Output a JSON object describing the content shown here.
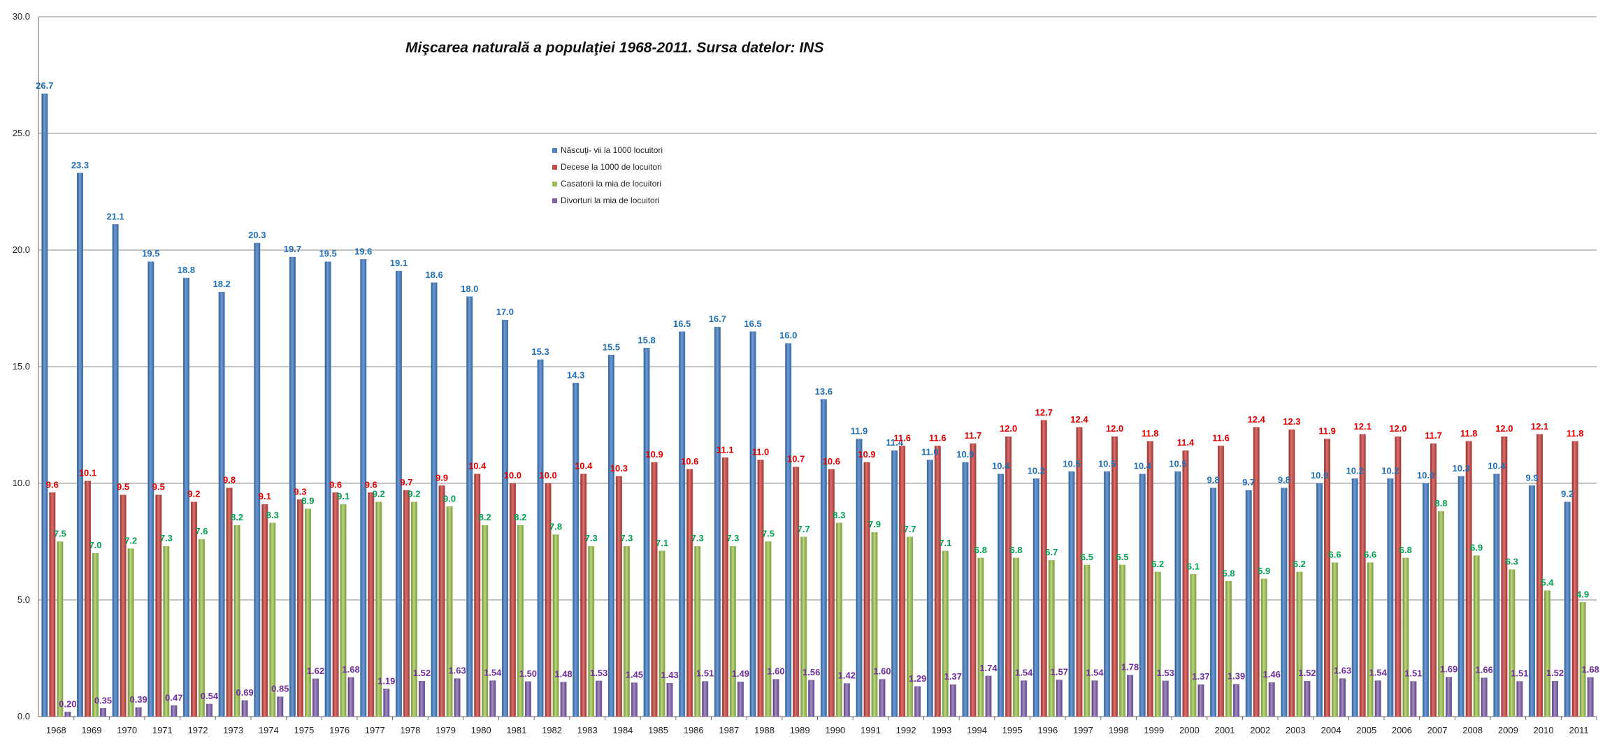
{
  "chart_data": {
    "type": "bar",
    "title": "Mişcarea naturală a populaţiei 1968-2011. Sursa datelor: INS",
    "xlabel": "",
    "ylabel": "",
    "ylim": [
      0,
      30
    ],
    "yticks": [
      "0.0",
      "5.0",
      "10.0",
      "15.0",
      "20.0",
      "25.0",
      "30.0"
    ],
    "grid": true,
    "legend_position": "top-center",
    "categories": [
      "1968",
      "1969",
      "1970",
      "1971",
      "1972",
      "1973",
      "1974",
      "1975",
      "1976",
      "1977",
      "1978",
      "1979",
      "1980",
      "1981",
      "1982",
      "1983",
      "1984",
      "1985",
      "1986",
      "1987",
      "1988",
      "1989",
      "1990",
      "1991",
      "1992",
      "1993",
      "1994",
      "1995",
      "1996",
      "1997",
      "1998",
      "1999",
      "2000",
      "2001",
      "2002",
      "2003",
      "2004",
      "2005",
      "2006",
      "2007",
      "2008",
      "2009",
      "2010",
      "2011"
    ],
    "series": [
      {
        "name": "Născuţi- vii la 1000 locuitori",
        "color": "#4f81bd",
        "label_color": "#1f6fb5",
        "values": [
          26.7,
          23.3,
          21.1,
          19.5,
          18.8,
          18.2,
          20.3,
          19.7,
          19.5,
          19.6,
          19.1,
          18.6,
          18.0,
          17.0,
          15.3,
          14.3,
          15.5,
          15.8,
          16.5,
          16.7,
          16.5,
          16.0,
          13.6,
          11.9,
          11.4,
          11.0,
          10.9,
          10.4,
          10.2,
          10.5,
          10.5,
          10.4,
          10.5,
          9.8,
          9.7,
          9.8,
          10.0,
          10.2,
          10.2,
          10.0,
          10.3,
          10.4,
          9.9,
          9.2
        ],
        "labels": [
          "26.7",
          "23.3",
          "21.1",
          "19.5",
          "18.8",
          "18.2",
          "20.3",
          "19.7",
          "19.5",
          "19.6",
          "19.1",
          "18.6",
          "18.0",
          "17.0",
          "15.3",
          "14.3",
          "15.5",
          "15.8",
          "16.5",
          "16.7",
          "16.5",
          "16.0",
          "13.6",
          "11.9",
          "11.4",
          "11.0",
          "10.9",
          "10.4",
          "10.2",
          "10.5",
          "10.5",
          "10.4",
          "10.5",
          "9.8",
          "9.7",
          "9.8",
          "10.0",
          "10.2",
          "10.2",
          "10.0",
          "10.3",
          "10.4",
          "9.9",
          "9.2"
        ]
      },
      {
        "name": "Decese la 1000 de locuitori",
        "color": "#c0504d",
        "label_color": "#e00000",
        "values": [
          9.6,
          10.1,
          9.5,
          9.5,
          9.2,
          9.8,
          9.1,
          9.3,
          9.6,
          9.6,
          9.7,
          9.9,
          10.4,
          10.0,
          10.0,
          10.4,
          10.3,
          10.9,
          10.6,
          11.1,
          11.0,
          10.7,
          10.6,
          10.9,
          11.6,
          11.6,
          11.7,
          12.0,
          12.7,
          12.4,
          12.0,
          11.8,
          11.4,
          11.6,
          12.4,
          12.3,
          11.9,
          12.1,
          12.0,
          11.7,
          11.8,
          12.0,
          12.1,
          11.8
        ],
        "labels": [
          "9.6",
          "10.1",
          "9.5",
          "9.5",
          "9.2",
          "9.8",
          "9.1",
          "9.3",
          "9.6",
          "9.6",
          "9.7",
          "9.9",
          "10.4",
          "10.0",
          "10.0",
          "10.4",
          "10.3",
          "10.9",
          "10.6",
          "11.1",
          "11.0",
          "10.7",
          "10.6",
          "10.9",
          "11.6",
          "11.6",
          "11.7",
          "12.0",
          "12.7",
          "12.4",
          "12.0",
          "11.8",
          "11.4",
          "11.6",
          "12.4",
          "12.3",
          "11.9",
          "12.1",
          "12.0",
          "11.7",
          "11.8",
          "12.0",
          "12.1",
          "11.8"
        ]
      },
      {
        "name": "Casatorii la mia de locuitori",
        "color": "#9bbb59",
        "label_color": "#00a050",
        "values": [
          7.5,
          7.0,
          7.2,
          7.3,
          7.6,
          8.2,
          8.3,
          8.9,
          9.1,
          9.2,
          9.2,
          9.0,
          8.2,
          8.2,
          7.8,
          7.3,
          7.3,
          7.1,
          7.3,
          7.3,
          7.5,
          7.7,
          8.3,
          7.9,
          7.7,
          7.1,
          6.8,
          6.8,
          6.7,
          6.5,
          6.5,
          6.2,
          6.1,
          5.8,
          5.9,
          6.2,
          6.6,
          6.6,
          6.8,
          8.8,
          6.9,
          6.3,
          5.4,
          4.9
        ],
        "labels": [
          "7.5",
          "7.0",
          "7.2",
          "7.3",
          "7.6",
          "8.2",
          "8.3",
          "8.9",
          "9.1",
          "9.2",
          "9.2",
          "9.0",
          "8.2",
          "8.2",
          "7.8",
          "7.3",
          "7.3",
          "7.1",
          "7.3",
          "7.3",
          "7.5",
          "7.7",
          "8.3",
          "7.9",
          "7.7",
          "7.1",
          "6.8",
          "6.8",
          "6.7",
          "6.5",
          "6.5",
          "6.2",
          "6.1",
          "5.8",
          "5.9",
          "6.2",
          "6.6",
          "6.6",
          "6.8",
          "8.8",
          "6.9",
          "6.3",
          "5.4",
          "4.9"
        ]
      },
      {
        "name": "Divorturi la mia de locuitori",
        "color": "#8064a2",
        "label_color": "#7030a0",
        "values": [
          0.2,
          0.35,
          0.39,
          0.47,
          0.54,
          0.69,
          0.85,
          1.62,
          1.68,
          1.19,
          1.52,
          1.63,
          1.54,
          1.5,
          1.48,
          1.53,
          1.45,
          1.43,
          1.51,
          1.49,
          1.6,
          1.56,
          1.42,
          1.6,
          1.29,
          1.37,
          1.74,
          1.54,
          1.57,
          1.54,
          1.78,
          1.53,
          1.37,
          1.39,
          1.46,
          1.52,
          1.63,
          1.54,
          1.51,
          1.69,
          1.66,
          1.51,
          1.52,
          1.68
        ],
        "labels": [
          "0.20",
          "0.35",
          "0.39",
          "0.47",
          "0.54",
          "0.69",
          "0.85",
          "1.62",
          "1.68",
          "1.19",
          "1.52",
          "1.63",
          "1.54",
          "1.50",
          "1.48",
          "1.53",
          "1.45",
          "1.43",
          "1.51",
          "1.49",
          "1.60",
          "1.56",
          "1.42",
          "1.60",
          "1.29",
          "1.37",
          "1.74",
          "1.54",
          "1.57",
          "1.54",
          "1.78",
          "1.53",
          "1.37",
          "1.39",
          "1.46",
          "1.52",
          "1.63",
          "1.54",
          "1.51",
          "1.69",
          "1.66",
          "1.51",
          "1.52",
          "1.68"
        ]
      }
    ]
  }
}
